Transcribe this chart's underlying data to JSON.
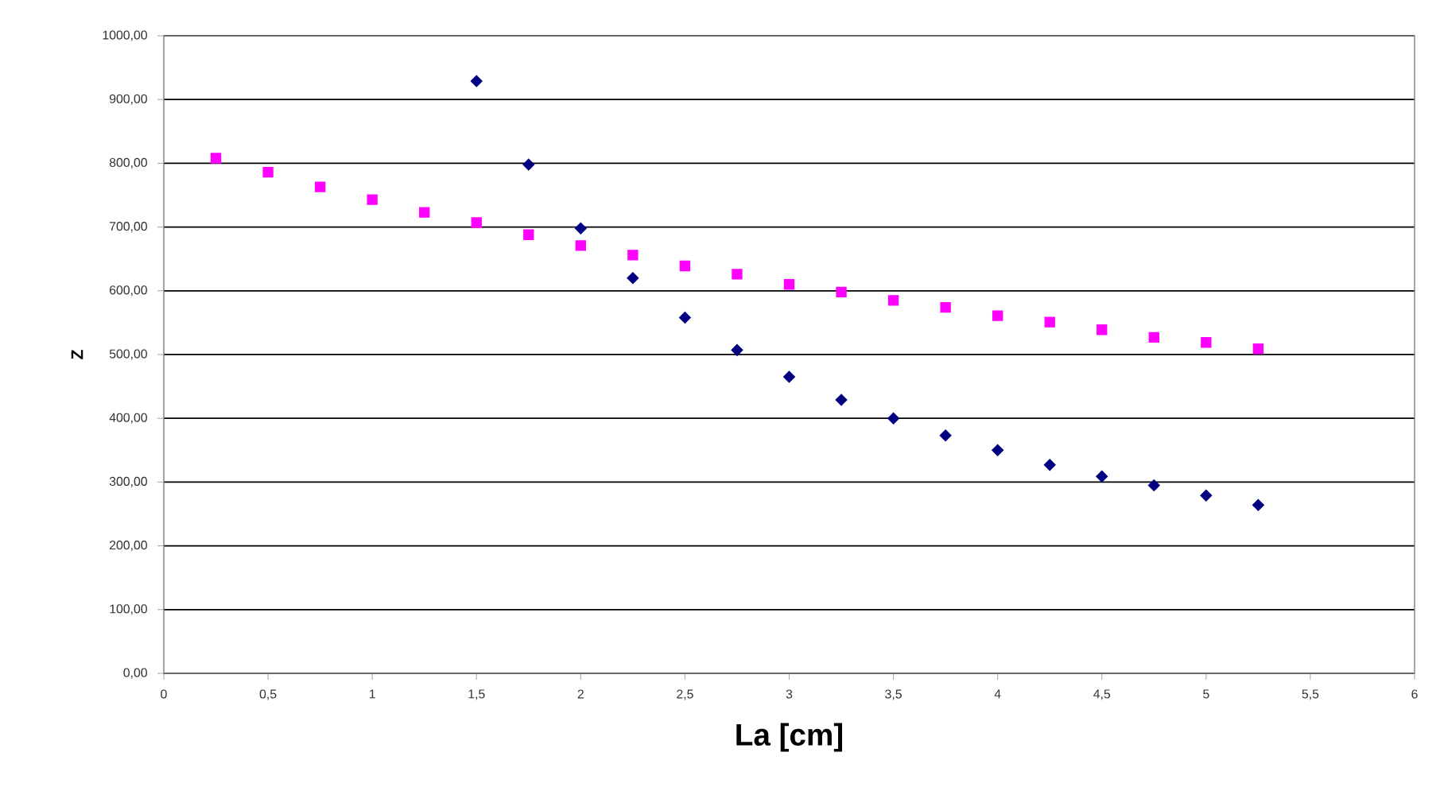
{
  "chart_data": {
    "type": "scatter",
    "xlabel": "La [cm]",
    "ylabel": "Z",
    "xlim": [
      0,
      6
    ],
    "ylim": [
      0,
      1000
    ],
    "xticks": [
      0,
      {
        "value": 0.5,
        "label": "0,5"
      },
      1,
      {
        "value": 1.5,
        "label": "1,5"
      },
      2,
      {
        "value": 2.5,
        "label": "2,5"
      },
      3,
      {
        "value": 3.5,
        "label": "3,5"
      },
      4,
      {
        "value": 4.5,
        "label": "4,5"
      },
      5,
      {
        "value": 5.5,
        "label": "5,5"
      },
      6
    ],
    "yticks": [
      {
        "value": 0,
        "label": "0,00"
      },
      {
        "value": 100,
        "label": "100,00"
      },
      {
        "value": 200,
        "label": "200,00"
      },
      {
        "value": 300,
        "label": "300,00"
      },
      {
        "value": 400,
        "label": "400,00"
      },
      {
        "value": 500,
        "label": "500,00"
      },
      {
        "value": 600,
        "label": "600,00"
      },
      {
        "value": 700,
        "label": "700,00"
      },
      {
        "value": 800,
        "label": "800,00"
      },
      {
        "value": 900,
        "label": "900,00"
      },
      {
        "value": 1000,
        "label": "1000,00"
      }
    ],
    "grid": "y",
    "series": [
      {
        "color": "#000080",
        "marker": "diamond",
        "x": [
          1.5,
          1.75,
          2,
          2.25,
          2.5,
          2.75,
          3,
          3.25,
          3.5,
          3.75,
          4,
          4.25,
          4.5,
          4.75,
          5,
          5.25
        ],
        "values": [
          929,
          798,
          698,
          620,
          558,
          507,
          465,
          429,
          400,
          373,
          350,
          327,
          309,
          295,
          279,
          264
        ]
      },
      {
        "color": "#ff00ff",
        "marker": "square",
        "x": [
          0.25,
          0.5,
          0.75,
          1,
          1.25,
          1.5,
          1.75,
          2,
          2.25,
          2.5,
          2.75,
          3,
          3.25,
          3.5,
          3.75,
          4,
          4.25,
          4.5,
          4.75,
          5,
          5.25
        ],
        "values": [
          808,
          786,
          763,
          743,
          723,
          707,
          688,
          671,
          656,
          639,
          626,
          610,
          598,
          585,
          574,
          561,
          551,
          539,
          527,
          519,
          509
        ]
      }
    ]
  }
}
